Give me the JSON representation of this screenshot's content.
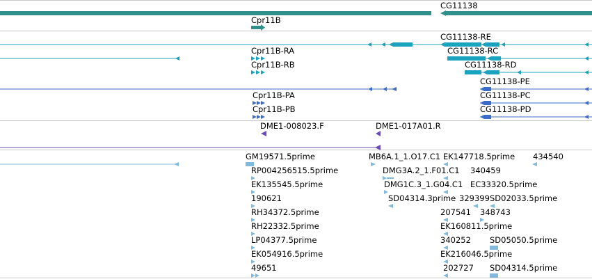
{
  "colors": {
    "gene": "#2f8f8b",
    "transcript": "#1aa3be",
    "protein": "#3b6cc7",
    "rnai": "#6a4bb8",
    "est": "#82b9de",
    "separator": "#c8c8c8"
  },
  "tracks": {
    "gene": {
      "labels": [
        "CG11138",
        "Cpr11B"
      ]
    },
    "transcripts": {
      "labels": [
        "CG11138-RE",
        "Cpr11B-RA",
        "CG11138-RC",
        "Cpr11B-RB",
        "CG11138-RD"
      ]
    },
    "proteins": {
      "labels": [
        "CG11138-PE",
        "Cpr11B-PA",
        "CG11138-PC",
        "Cpr11B-PB",
        "CG11138-PD"
      ]
    },
    "rnai": {
      "labels": [
        "DME1-008023.F",
        "DME1-017A01.R"
      ]
    },
    "est": {
      "labels": [
        "GM19571.5prime",
        "MB6A.1_1.O17.C1",
        "EK147718.5prime",
        "434540",
        "RP004256515.5prime",
        "DMG3A.2_1.F01.C1",
        "340459",
        "EK135545.5prime",
        "DMG1C.3_1.G04.C1",
        "EC33320.5prime",
        "190621",
        "SD04314.3prime",
        "329399",
        "SD02033.5prime",
        "RH34372.5prime",
        "207541",
        "348743",
        "RH22332.5prime",
        "EK160811.5prime",
        "LP04377.5prime",
        "340252",
        "SD05050.5prime",
        "EK054916.5prime",
        "EK216046.5prime",
        "49651",
        "202727",
        "SD04314.5prime"
      ]
    }
  }
}
